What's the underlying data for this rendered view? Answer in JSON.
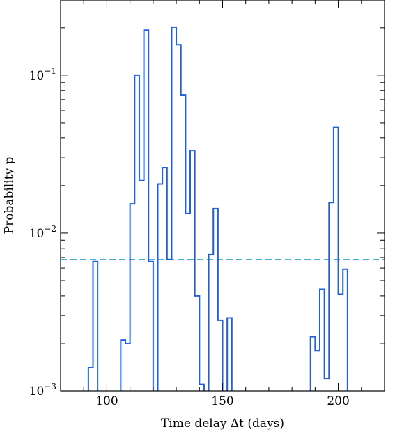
{
  "chart_data": {
    "type": "step",
    "xlabel": "Time delay Δt (days)",
    "ylabel": "Probability p",
    "xlim": [
      80,
      220
    ],
    "ylim": [
      0.001,
      0.3
    ],
    "yscale": "log",
    "x_ticks": [
      100,
      150,
      200
    ],
    "y_ticks": [
      {
        "value": 0.001,
        "base": "10",
        "exp": "−3"
      },
      {
        "value": 0.01,
        "base": "10",
        "exp": "−2"
      },
      {
        "value": 0.1,
        "base": "10",
        "exp": "−1"
      }
    ],
    "threshold": 0.0068,
    "bin_width": 2,
    "series": [
      {
        "color": "#1f5fe0",
        "bins": [
          {
            "x0": 92,
            "p": 0.0014
          },
          {
            "x0": 94,
            "p": 0.0066
          },
          {
            "x0": 106,
            "p": 0.0021
          },
          {
            "x0": 108,
            "p": 0.002
          },
          {
            "x0": 110,
            "p": 0.0153
          },
          {
            "x0": 112,
            "p": 0.1
          },
          {
            "x0": 114,
            "p": 0.0215
          },
          {
            "x0": 116,
            "p": 0.193
          },
          {
            "x0": 118,
            "p": 0.0066
          },
          {
            "x0": 122,
            "p": 0.0205
          },
          {
            "x0": 124,
            "p": 0.026
          },
          {
            "x0": 126,
            "p": 0.0068
          },
          {
            "x0": 128,
            "p": 0.202
          },
          {
            "x0": 130,
            "p": 0.156
          },
          {
            "x0": 132,
            "p": 0.075
          },
          {
            "x0": 134,
            "p": 0.0133
          },
          {
            "x0": 136,
            "p": 0.0332
          },
          {
            "x0": 138,
            "p": 0.004
          },
          {
            "x0": 140,
            "p": 0.0011
          },
          {
            "x0": 144,
            "p": 0.0073
          },
          {
            "x0": 146,
            "p": 0.0143
          },
          {
            "x0": 148,
            "p": 0.0028
          },
          {
            "x0": 152,
            "p": 0.0029
          },
          {
            "x0": 188,
            "p": 0.0022
          },
          {
            "x0": 190,
            "p": 0.0018
          },
          {
            "x0": 192,
            "p": 0.0044
          },
          {
            "x0": 194,
            "p": 0.0012
          },
          {
            "x0": 196,
            "p": 0.0156
          },
          {
            "x0": 198,
            "p": 0.0467
          },
          {
            "x0": 200,
            "p": 0.0041
          },
          {
            "x0": 202,
            "p": 0.0059
          }
        ]
      }
    ],
    "threshold_color": "#2aa6d6"
  }
}
